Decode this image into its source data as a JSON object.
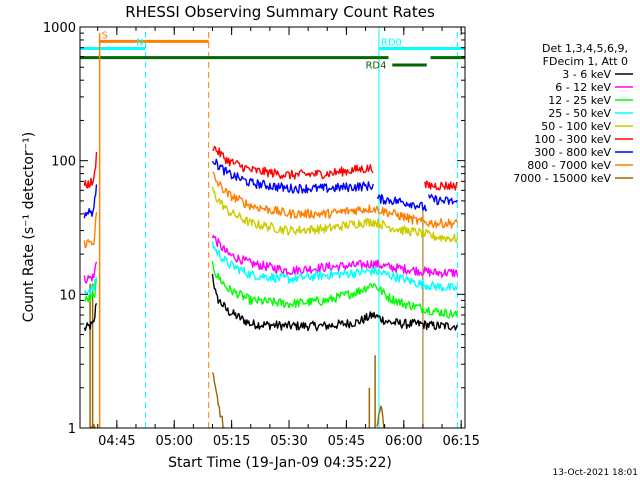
{
  "chart_data": {
    "type": "line",
    "title": "RHESSI Observing Summary Count Rates",
    "xlabel": "Start Time (19-Jan-09 04:35:22)",
    "ylabel": "Count Rate (s⁻¹ detector⁻¹)",
    "ylog": true,
    "ylim": [
      1,
      1000
    ],
    "xlim": [
      "04:35:22",
      "06:16:00"
    ],
    "x_ticks": [
      "04:45",
      "05:00",
      "05:15",
      "05:30",
      "05:45",
      "06:00",
      "06:15"
    ],
    "y_ticks": [
      {
        "value": 1,
        "label": "1"
      },
      {
        "value": 10,
        "label": "10"
      },
      {
        "value": 100,
        "label": "100"
      },
      {
        "value": 1000,
        "label": "1000"
      }
    ],
    "legend": {
      "position": "right",
      "header": [
        "Det 1,3,4,5,6,9,",
        "FDecim 1, Att 0"
      ]
    },
    "series": [
      {
        "name": "3 - 6 keV",
        "color": "#000000",
        "segments": [
          [
            [
              "04:36:30",
              5.5
            ],
            [
              "04:39:00",
              6.0
            ],
            [
              "04:39:40",
              9.0
            ]
          ],
          [
            [
              "05:10:00",
              14
            ],
            [
              "05:11:00",
              9.5
            ],
            [
              "05:14:00",
              7.5
            ],
            [
              "05:20:00",
              6.0
            ],
            [
              "05:30:00",
              5.8
            ],
            [
              "05:40:00",
              5.8
            ],
            [
              "05:48:00",
              6.2
            ],
            [
              "05:52:00",
              7.0
            ],
            [
              "05:56:00",
              6.2
            ],
            [
              "06:00:00",
              6.0
            ],
            [
              "06:04:00",
              6.0
            ],
            [
              "06:08:00",
              5.8
            ],
            [
              "06:14:00",
              5.8
            ]
          ]
        ]
      },
      {
        "name": "6 - 12 keV",
        "color": "#ff00ff",
        "segments": [
          [
            [
              "04:36:30",
              13
            ],
            [
              "04:39:00",
              13.5
            ],
            [
              "04:39:40",
              18
            ]
          ],
          [
            [
              "05:10:00",
              28
            ],
            [
              "05:11:00",
              25
            ],
            [
              "05:14:00",
              20
            ],
            [
              "05:20:00",
              17
            ],
            [
              "05:30:00",
              15
            ],
            [
              "05:40:00",
              16
            ],
            [
              "05:48:00",
              16.5
            ],
            [
              "05:52:00",
              17
            ],
            [
              "05:56:00",
              16
            ],
            [
              "06:00:00",
              15.5
            ],
            [
              "06:04:00",
              15
            ],
            [
              "06:08:00",
              14.5
            ],
            [
              "06:14:00",
              14.5
            ]
          ]
        ]
      },
      {
        "name": "12 - 25 keV",
        "color": "#00ff00",
        "segments": [
          [
            [
              "04:36:30",
              9.0
            ],
            [
              "04:39:00",
              9.5
            ],
            [
              "04:39:40",
              12
            ]
          ],
          [
            [
              "05:10:00",
              17
            ],
            [
              "05:11:00",
              14
            ],
            [
              "05:14:00",
              11
            ],
            [
              "05:20:00",
              9.0
            ],
            [
              "05:30:00",
              8.5
            ],
            [
              "05:40:00",
              9.0
            ],
            [
              "05:48:00",
              10.5
            ],
            [
              "05:52:00",
              12
            ],
            [
              "05:56:00",
              9.5
            ],
            [
              "06:00:00",
              8.5
            ],
            [
              "06:04:00",
              8.0
            ],
            [
              "06:08:00",
              7.5
            ],
            [
              "06:14:00",
              7.0
            ]
          ]
        ]
      },
      {
        "name": "25 - 50 keV",
        "color": "#00ffff",
        "segments": [
          [
            [
              "04:36:30",
              10.5
            ],
            [
              "04:39:00",
              11
            ],
            [
              "04:39:40",
              14
            ]
          ],
          [
            [
              "05:10:00",
              24
            ],
            [
              "05:11:00",
              21
            ],
            [
              "05:14:00",
              17
            ],
            [
              "05:20:00",
              14
            ],
            [
              "05:30:00",
              13
            ],
            [
              "05:40:00",
              14
            ],
            [
              "05:48:00",
              14.5
            ],
            [
              "05:52:00",
              15
            ],
            [
              "05:56:00",
              14
            ],
            [
              "06:00:00",
              13
            ],
            [
              "06:04:00",
              12
            ],
            [
              "06:08:00",
              11.5
            ],
            [
              "06:14:00",
              11
            ]
          ]
        ]
      },
      {
        "name": "50 - 100 keV",
        "color": "#cccc00",
        "segments": [
          [
            [
              "05:10:00",
              60
            ],
            [
              "05:11:00",
              53
            ],
            [
              "05:14:00",
              42
            ],
            [
              "05:20:00",
              34
            ],
            [
              "05:30:00",
              30
            ],
            [
              "05:40:00",
              31
            ],
            [
              "05:48:00",
              34
            ],
            [
              "05:52:00",
              35
            ],
            [
              "05:56:00",
              32
            ],
            [
              "06:00:00",
              30
            ],
            [
              "06:04:00",
              29
            ],
            [
              "06:08:00",
              27
            ],
            [
              "06:14:00",
              26
            ]
          ]
        ]
      },
      {
        "name": "100 - 300 keV",
        "color": "#ff0000",
        "segments": [
          [
            [
              "04:36:30",
              65
            ],
            [
              "04:39:00",
              70
            ],
            [
              "04:39:40",
              110
            ]
          ],
          [
            [
              "05:10:00",
              130
            ],
            [
              "05:11:00",
              120
            ],
            [
              "05:14:00",
              100
            ],
            [
              "05:20:00",
              85
            ],
            [
              "05:30:00",
              78
            ],
            [
              "05:40:00",
              80
            ],
            [
              "05:48:00",
              86
            ],
            [
              "05:52:00",
              88
            ]
          ],
          [
            [
              "06:05:30",
              65
            ],
            [
              "06:10:00",
              65
            ],
            [
              "06:14:00",
              65
            ]
          ]
        ]
      },
      {
        "name": "300 - 800 keV",
        "color": "#0000ff",
        "segments": [
          [
            [
              "04:36:30",
              40
            ],
            [
              "04:39:00",
              42
            ],
            [
              "04:39:40",
              70
            ]
          ],
          [
            [
              "05:10:00",
              105
            ],
            [
              "05:11:00",
              95
            ],
            [
              "05:14:00",
              80
            ],
            [
              "05:20:00",
              68
            ],
            [
              "05:30:00",
              62
            ],
            [
              "05:40:00",
              62
            ],
            [
              "05:48:00",
              64
            ],
            [
              "05:52:00",
              65
            ]
          ],
          [
            [
              "05:53:00",
              52
            ],
            [
              "05:58:00",
              50
            ],
            [
              "06:02:00",
              48
            ],
            [
              "06:06:00",
              44
            ]
          ],
          [
            [
              "06:06:30",
              52
            ],
            [
              "06:10:00",
              50
            ],
            [
              "06:14:00",
              49
            ]
          ]
        ]
      },
      {
        "name": "800 - 7000 keV",
        "color": "#ff8000",
        "segments": [
          [
            [
              "04:36:30",
              24
            ],
            [
              "04:39:00",
              25
            ],
            [
              "04:39:40",
              40
            ]
          ],
          [
            [
              "05:10:00",
              80
            ],
            [
              "05:11:00",
              70
            ],
            [
              "05:14:00",
              56
            ],
            [
              "05:20:00",
              46
            ],
            [
              "05:30:00",
              40
            ],
            [
              "05:40:00",
              40
            ],
            [
              "05:48:00",
              43
            ],
            [
              "05:52:00",
              44
            ],
            [
              "05:56:00",
              41
            ],
            [
              "06:00:00",
              38
            ],
            [
              "06:04:00",
              35
            ],
            [
              "06:08:00",
              34
            ],
            [
              "06:14:00",
              34
            ]
          ]
        ]
      },
      {
        "name": "7000 - 15000 keV",
        "color": "#996600",
        "segments": [
          [
            [
              "04:38:00",
              1.0
            ],
            [
              "04:39:30",
              1.0
            ]
          ],
          [
            [
              "05:10:00",
              2.5
            ],
            [
              "05:12:00",
              1.3
            ],
            [
              "05:13:00",
              1.0
            ]
          ],
          [
            [
              "05:53:00",
              1.0
            ],
            [
              "05:54:00",
              1.4
            ],
            [
              "05:55:00",
              1.0
            ]
          ]
        ]
      }
    ],
    "spikes": [
      {
        "color": "#ff8000",
        "time": "04:40:30",
        "from": 1,
        "to": 900
      },
      {
        "color": "#996600",
        "time": "04:38:00",
        "from": 1,
        "to": 12
      },
      {
        "color": "#996600",
        "time": "04:38:40",
        "from": 1,
        "to": 12
      },
      {
        "color": "#996600",
        "time": "05:51:00",
        "from": 1,
        "to": 2
      },
      {
        "color": "#996600",
        "time": "05:52:30",
        "from": 1,
        "to": 3.5
      }
    ],
    "vlines": [
      {
        "color": "#00ffff",
        "style": "solid",
        "time": "04:35:22"
      },
      {
        "color": "#00ffff",
        "style": "dashed",
        "time": "04:52:30"
      },
      {
        "color": "#00ffff",
        "style": "solid",
        "time": "05:53:30"
      },
      {
        "color": "#00ffff",
        "style": "dashed",
        "time": "06:14:00"
      },
      {
        "color": "#ff8000",
        "style": "dashed",
        "time": "05:09:00"
      },
      {
        "color": "#996600",
        "style": "solid",
        "time": "06:05:00",
        "to": 45
      }
    ],
    "flag_bars": [
      {
        "label": "S",
        "color": "#ff8000",
        "start": "04:40:30",
        "end": "05:09:00",
        "y": 780,
        "label_at": "start"
      },
      {
        "label": "N",
        "color": "#00ffff",
        "start": "04:35:22",
        "end": "04:52:30",
        "y": 690,
        "label_at": "end"
      },
      {
        "label": "RD0",
        "color": "#00ffff",
        "start": "05:53:30",
        "end": "06:16:00",
        "y": 690,
        "label_at": "start"
      },
      {
        "label": "RD4",
        "color": "#006600",
        "start": "04:35:22",
        "end": "05:56:00",
        "y": 590,
        "label_at": "end"
      },
      {
        "label": "RD4",
        "color": "#006600",
        "start": "05:57:00",
        "end": "06:06:00",
        "y": 520,
        "label_at": "none"
      },
      {
        "label": "RD4",
        "color": "#006600",
        "start": "06:07:00",
        "end": "06:16:00",
        "y": 590,
        "label_at": "none"
      }
    ]
  },
  "footer_timestamp": "13-Oct-2021 18:01"
}
